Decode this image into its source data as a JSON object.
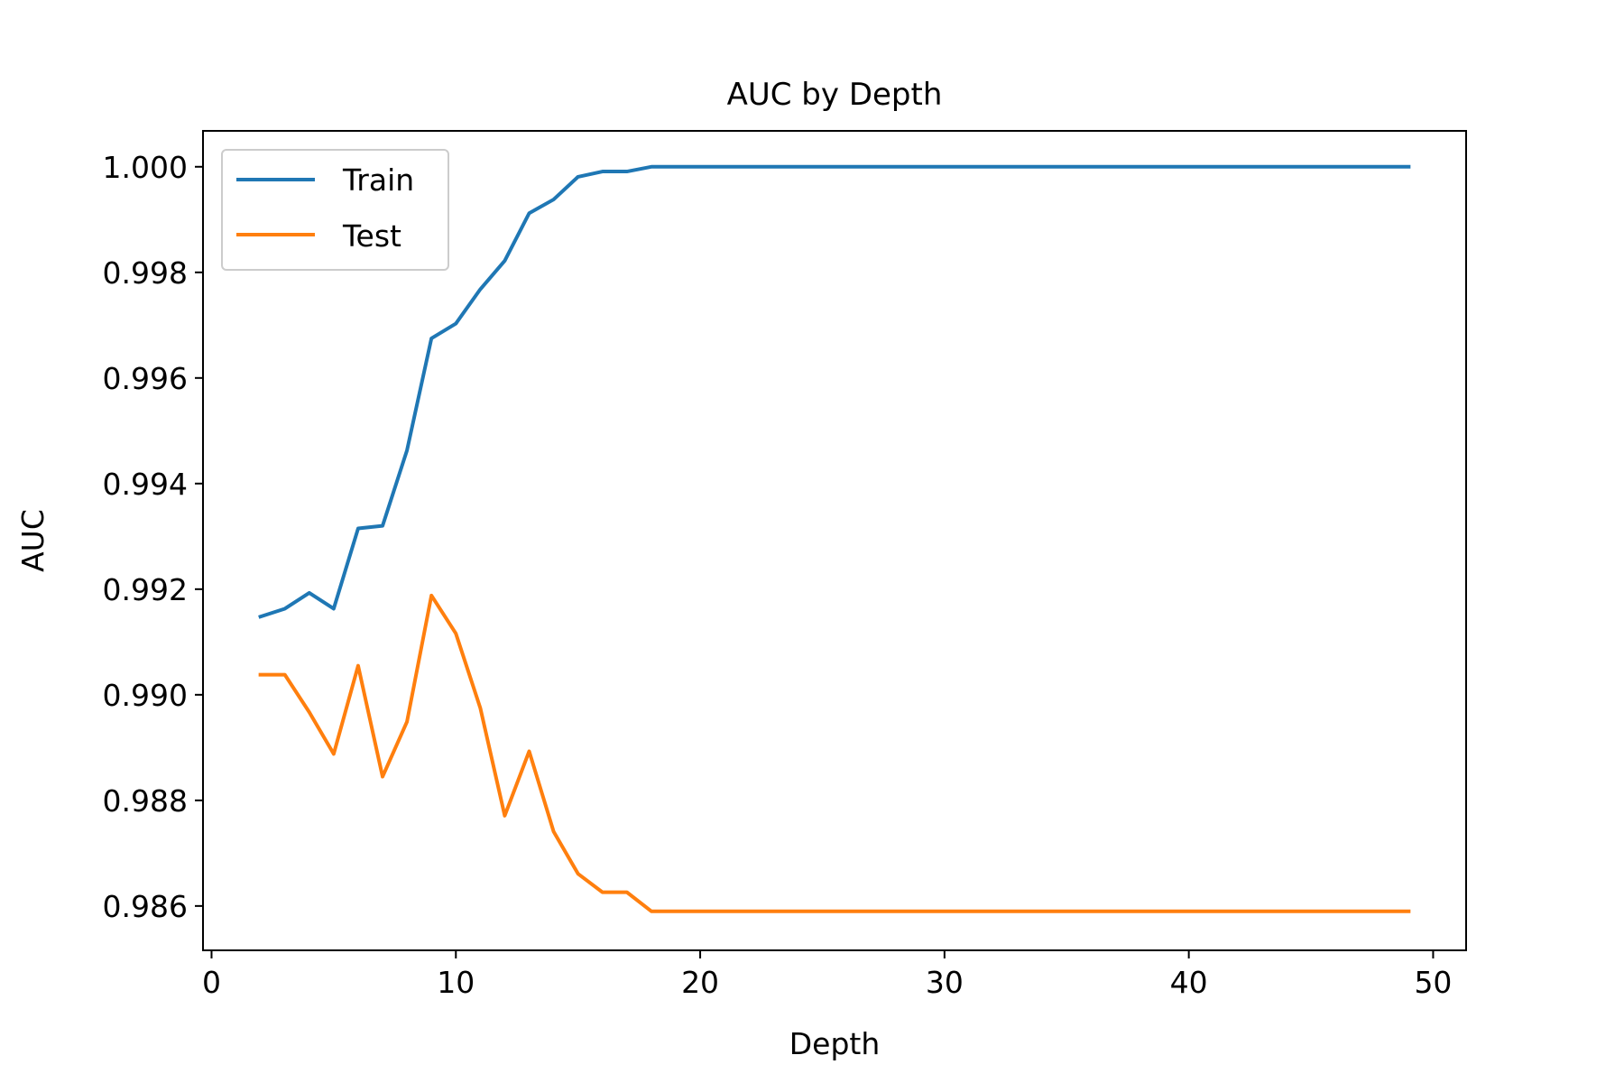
{
  "chart_data": {
    "type": "line",
    "title": "AUC by Depth",
    "xlabel": "Depth",
    "ylabel": "AUC",
    "xlim": [
      -0.35,
      51.35
    ],
    "ylim": [
      0.98516,
      1.00068
    ],
    "xticks": [
      0,
      10,
      20,
      30,
      40,
      50
    ],
    "xtick_labels": [
      "0",
      "10",
      "20",
      "30",
      "40",
      "50"
    ],
    "yticks": [
      0.986,
      0.988,
      0.99,
      0.992,
      0.994,
      0.996,
      0.998,
      1.0
    ],
    "ytick_labels": [
      "0.986",
      "0.988",
      "0.990",
      "0.992",
      "0.994",
      "0.996",
      "0.998",
      "1.000"
    ],
    "grid": false,
    "legend_position": "upper left",
    "x": [
      2,
      3,
      4,
      5,
      6,
      7,
      8,
      9,
      10,
      11,
      12,
      13,
      14,
      15,
      16,
      17,
      18,
      19,
      20,
      21,
      22,
      23,
      24,
      25,
      26,
      27,
      28,
      29,
      30,
      31,
      32,
      33,
      34,
      35,
      36,
      37,
      38,
      39,
      40,
      41,
      42,
      43,
      44,
      45,
      46,
      47,
      48,
      49
    ],
    "series": [
      {
        "name": "Train",
        "color": "#1f77b4",
        "values": [
          0.99148,
          0.99163,
          0.99193,
          0.99163,
          0.99315,
          0.9932,
          0.99463,
          0.99675,
          0.99703,
          0.99768,
          0.99822,
          0.99912,
          0.99938,
          0.99981,
          0.99991,
          0.99991,
          1.0,
          1.0,
          1.0,
          1.0,
          1.0,
          1.0,
          1.0,
          1.0,
          1.0,
          1.0,
          1.0,
          1.0,
          1.0,
          1.0,
          1.0,
          1.0,
          1.0,
          1.0,
          1.0,
          1.0,
          1.0,
          1.0,
          1.0,
          1.0,
          1.0,
          1.0,
          1.0,
          1.0,
          1.0,
          1.0,
          1.0,
          1.0
        ]
      },
      {
        "name": "Test",
        "color": "#ff7f0e",
        "values": [
          0.99038,
          0.99038,
          0.98967,
          0.98888,
          0.99055,
          0.98845,
          0.98949,
          0.99188,
          0.99116,
          0.98975,
          0.98771,
          0.98893,
          0.98741,
          0.98661,
          0.98626,
          0.98626,
          0.9859,
          0.9859,
          0.9859,
          0.9859,
          0.9859,
          0.9859,
          0.9859,
          0.9859,
          0.9859,
          0.9859,
          0.9859,
          0.9859,
          0.9859,
          0.9859,
          0.9859,
          0.9859,
          0.9859,
          0.9859,
          0.9859,
          0.9859,
          0.9859,
          0.9859,
          0.9859,
          0.9859,
          0.9859,
          0.9859,
          0.9859,
          0.9859,
          0.9859,
          0.9859,
          0.9859,
          0.9859
        ]
      }
    ]
  }
}
